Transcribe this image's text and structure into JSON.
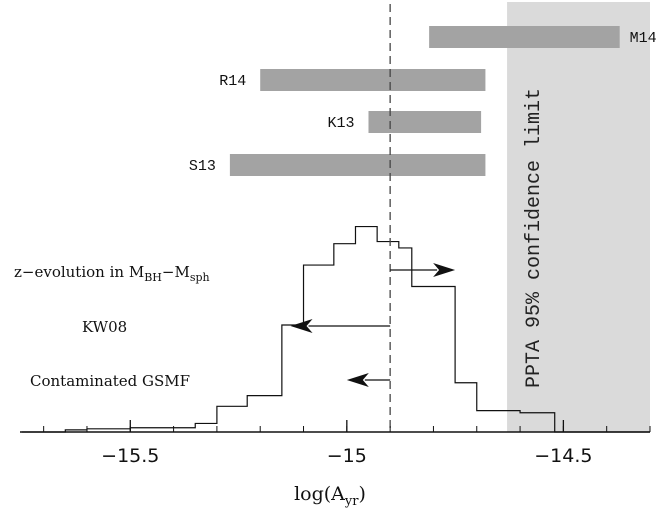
{
  "chart_data": {
    "type": "bar",
    "xlabel": "log(A_yr)",
    "xlim": [
      -15.75,
      -14.3
    ],
    "x_ticks": [
      -15.5,
      -15,
      -14.5
    ],
    "x_tick_labels": [
      "−15.5",
      "−15",
      "−14.5"
    ],
    "dashed_line_x": -14.9,
    "limit_region": {
      "from": -14.63,
      "to": -14.3,
      "label": "PPTA 95% confidence limit"
    },
    "bars": [
      {
        "label": "M14",
        "from": -14.81,
        "to": -14.37,
        "row": 0
      },
      {
        "label": "R14",
        "from": -15.2,
        "to": -14.68,
        "row": 1
      },
      {
        "label": "K13",
        "from": -14.95,
        "to": -14.69,
        "row": 2
      },
      {
        "label": "S13",
        "from": -15.27,
        "to": -14.68,
        "row": 3
      }
    ],
    "histogram": {
      "edges": [
        -15.75,
        -15.65,
        -15.6,
        -15.5,
        -15.4,
        -15.35,
        -15.3,
        -15.23,
        -15.15,
        -15.1,
        -15.03,
        -14.98,
        -14.93,
        -14.88,
        -14.85,
        -14.8,
        -14.75,
        -14.7,
        -14.65,
        -14.6,
        -14.52,
        -14.3
      ],
      "counts": [
        0.0,
        0.01,
        0.015,
        0.02,
        0.02,
        0.04,
        0.12,
        0.17,
        0.5,
        0.78,
        0.88,
        0.96,
        0.89,
        0.86,
        0.68,
        0.68,
        0.23,
        0.1,
        0.1,
        0.09,
        0.0
      ],
      "ymax": 1.0
    },
    "arrows": [
      {
        "label": "z−evolution in M_BH−M_sph",
        "from": -14.9,
        "to": -14.75,
        "direction": "right"
      },
      {
        "label": "KW08",
        "from": -14.9,
        "to": -15.13,
        "direction": "left"
      },
      {
        "label": "Contaminated GSMF",
        "from": -14.9,
        "to": -15.0,
        "direction": "left"
      }
    ]
  }
}
